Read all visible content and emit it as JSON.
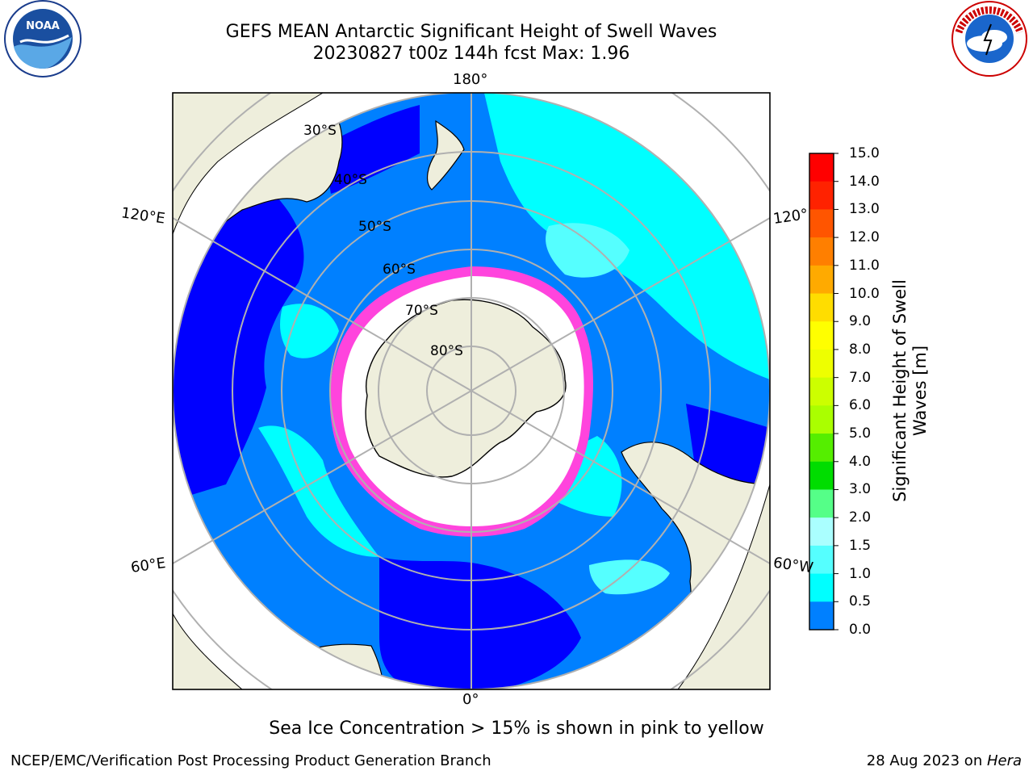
{
  "title": {
    "line1": "GEFS MEAN Antarctic Significant Height of Swell Waves",
    "line2": "20230827 t00z 144h fcst   Max: 1.96"
  },
  "map": {
    "projection": "south-polar-stereographic",
    "longitude_labels": {
      "lon_180": "180°",
      "lon_0": "0°",
      "lon_120e": "120°E",
      "lon_60e": "60°E",
      "lon_120w": "120°",
      "lon_60w": "60°W"
    },
    "latitude_labels": {
      "lat_30": "30°S",
      "lat_40": "40°S",
      "lat_50": "50°S",
      "lat_60": "60°S",
      "lat_70": "70°S",
      "lat_80": "80°S"
    },
    "colors": {
      "ocean_low": "#0000ff",
      "ocean_mid": "#0080ff",
      "ocean_high": "#00ffff",
      "ocean_peak": "#55ffff",
      "land": "#eeeedc",
      "ice_edge": "#ff44dd",
      "ice_edge_inner": "#ffcc33",
      "grid": "#b0b0b0"
    }
  },
  "colorbar": {
    "label": "Significant Height of Swell Waves [m]",
    "ticks": [
      "15.0",
      "14.0",
      "13.0",
      "12.0",
      "11.0",
      "10.0",
      "9.0",
      "8.0",
      "7.0",
      "6.0",
      "5.0",
      "4.0",
      "3.0",
      "2.0",
      "1.5",
      "1.0",
      "0.5",
      "0.0"
    ],
    "colors": [
      "#ff0000",
      "#ff2200",
      "#ff5500",
      "#ff7f00",
      "#ffaa00",
      "#ffdd00",
      "#ffff00",
      "#eeff00",
      "#ccff00",
      "#aaff00",
      "#55ee00",
      "#00dd00",
      "#55ff88",
      "#aaffff",
      "#55ffff",
      "#00ffff",
      "#0080ff",
      "#0000ff"
    ]
  },
  "note": "Sea Ice Concentration > 15% is shown in pink to yellow",
  "footer": {
    "left": "NCEP/EMC/Verification Post Processing Product Generation Branch",
    "right_prefix": "28 Aug 2023 on ",
    "right_machine": "Hera"
  },
  "logos": {
    "noaa": "NOAA",
    "nws": "NATIONAL WEATHER SERVICE"
  }
}
